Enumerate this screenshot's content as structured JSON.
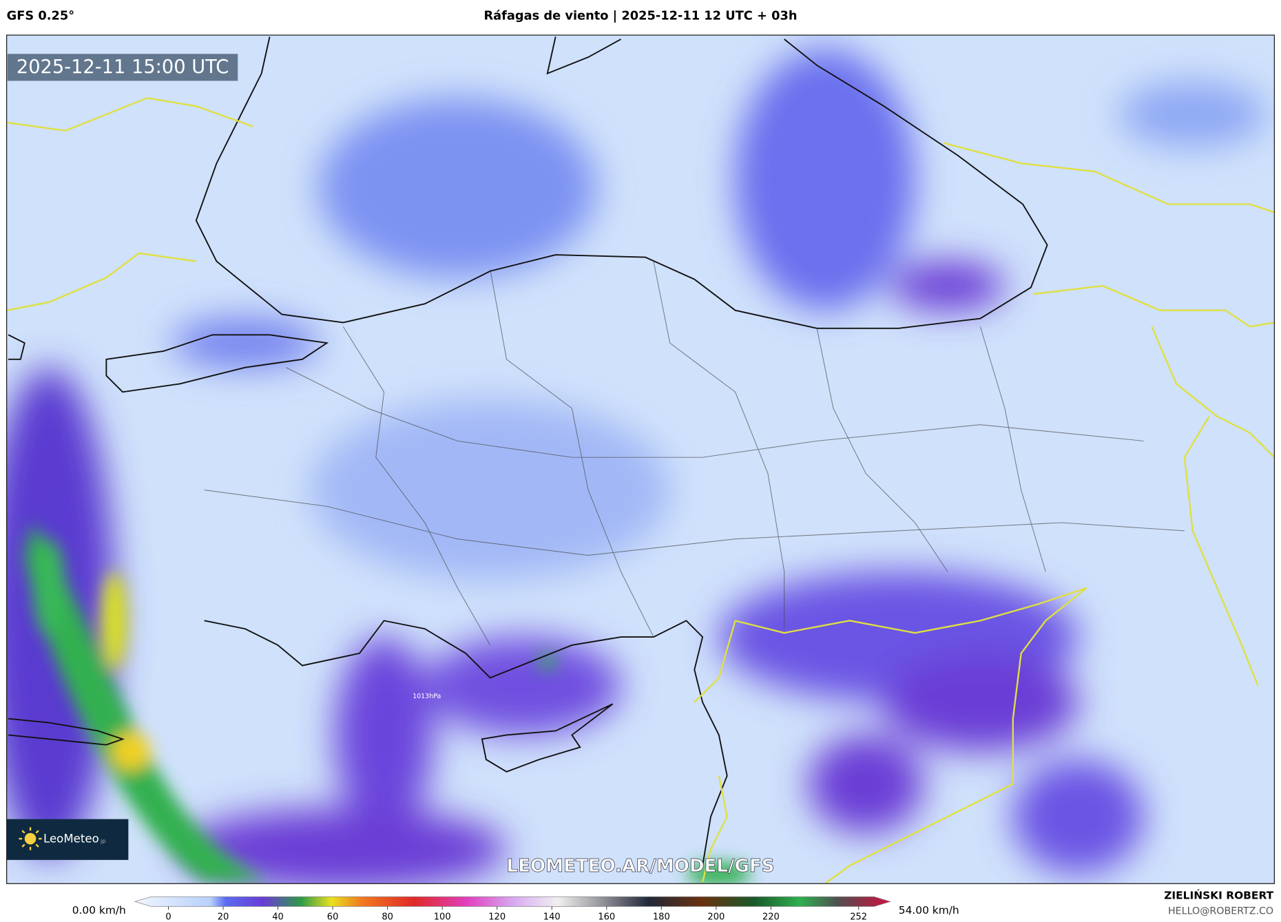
{
  "header": {
    "model": "GFS 0.25°",
    "title": "Ráfagas de viento | 2025-12-11 12 UTC + 03h"
  },
  "map": {
    "timestamp": "2025-12-11 15:00 UTC",
    "watermark": "LEOMETEO.AR/MODEL/GFS",
    "logo": "LeoMeteo",
    "logo_suffix": "jp",
    "isobar_label": "1013hPa"
  },
  "colorbar": {
    "min_label": "0.00 km/h",
    "max_label": "54.00 km/h",
    "ticks": [
      0,
      20,
      40,
      60,
      80,
      100,
      120,
      140,
      160,
      180,
      200,
      220,
      252
    ]
  },
  "credit": {
    "name": "ZIELIŃSKI ROBERT",
    "email": "HELLO@ROBERTZ.CO"
  }
}
